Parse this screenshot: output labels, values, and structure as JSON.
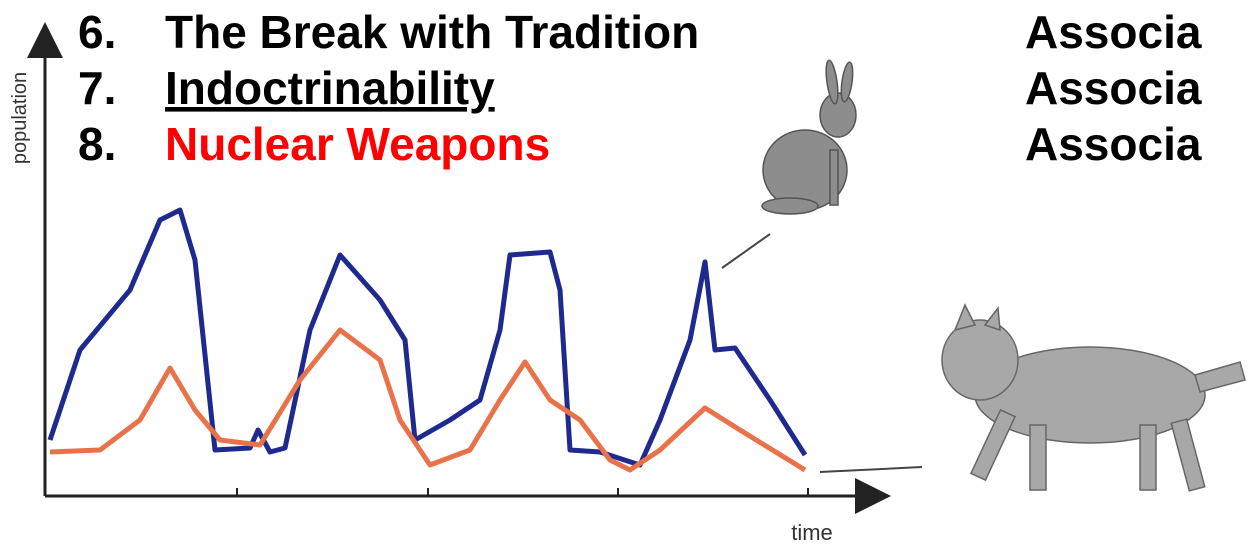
{
  "slide": {
    "items": [
      {
        "number": "6.",
        "text": "The Break with Tradition"
      },
      {
        "number": "7.",
        "text": "Indoctrinability"
      },
      {
        "number": "8.",
        "text": "Nuclear Weapons"
      }
    ],
    "right_column": [
      "Associa",
      "Associa",
      "Associa"
    ],
    "figure": {
      "y_axis_label": "population",
      "x_axis_label": "time"
    }
  }
}
